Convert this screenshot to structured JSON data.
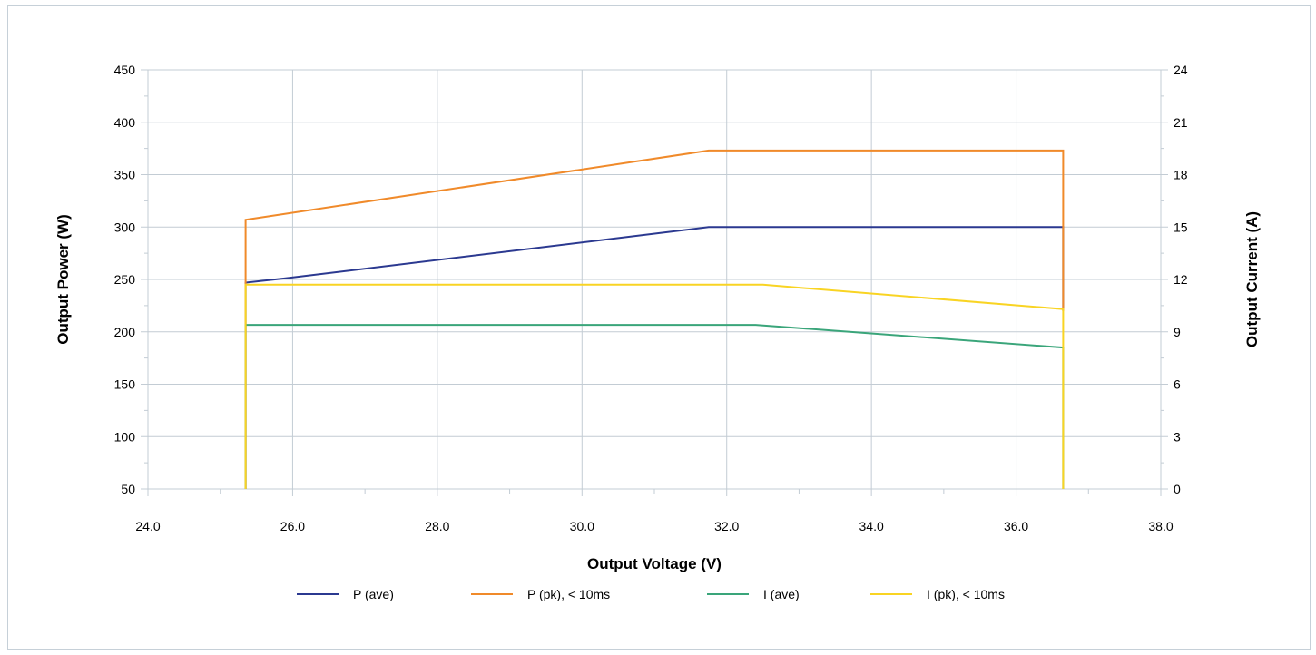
{
  "chart_data": {
    "type": "line",
    "title": "",
    "xlabel": "Output Voltage (V)",
    "ylabel": "Output Power (W)",
    "y2label": "Output Current (A)",
    "xlim": [
      24,
      38
    ],
    "ylim": [
      50,
      450
    ],
    "y2lim": [
      0,
      24
    ],
    "x_ticks": [
      "24.0",
      "26.0",
      "28.0",
      "30.0",
      "32.0",
      "34.0",
      "36.0",
      "38.0"
    ],
    "y_ticks": [
      "50",
      "100",
      "150",
      "200",
      "250",
      "300",
      "350",
      "400",
      "450"
    ],
    "y2_ticks": [
      "0",
      "3",
      "6",
      "9",
      "12",
      "15",
      "18",
      "21",
      "24"
    ],
    "grid": true,
    "legend_position": "bottom",
    "series": [
      {
        "name": "P (ave)",
        "axis": "left",
        "color": "#2b3990",
        "x": [
          25.35,
          25.35,
          25.9,
          31.75,
          36.65,
          36.65
        ],
        "y": [
          50,
          247,
          251,
          300,
          300,
          220
        ]
      },
      {
        "name": "P (pk), < 10ms",
        "axis": "left",
        "color": "#f08a2a",
        "x": [
          25.35,
          25.35,
          31.75,
          36.65,
          36.65
        ],
        "y": [
          50,
          307,
          373,
          373,
          220
        ]
      },
      {
        "name": "I (ave)",
        "axis": "right",
        "color": "#3aa57a",
        "x": [
          25.35,
          25.35,
          32.4,
          36.65,
          36.65
        ],
        "y": [
          0,
          9.4,
          9.4,
          8.1,
          0
        ]
      },
      {
        "name": "I (pk), < 10ms",
        "axis": "right",
        "color": "#f9d423",
        "x": [
          25.35,
          25.35,
          32.5,
          36.65,
          36.65
        ],
        "y": [
          0,
          11.7,
          11.7,
          10.3,
          0
        ]
      }
    ]
  }
}
